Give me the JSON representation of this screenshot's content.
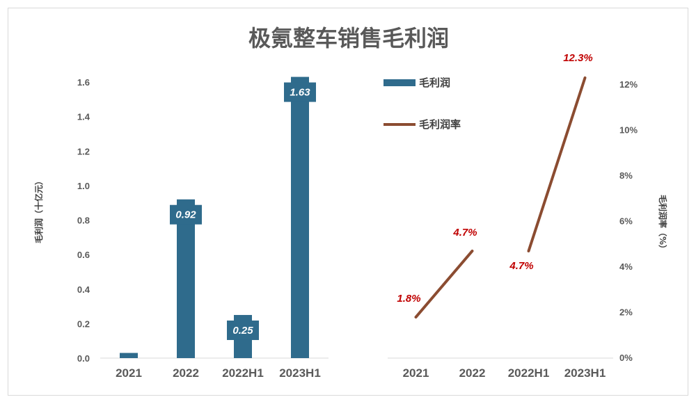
{
  "title": "极氪整车销售毛利润",
  "chart_data": [
    {
      "type": "bar",
      "categories": [
        "2021",
        "2022",
        "2022H1",
        "2023H1"
      ],
      "series": [
        {
          "name": "毛利润",
          "values": [
            0.03,
            0.92,
            0.25,
            1.63
          ]
        }
      ],
      "data_labels": [
        "",
        "0.92",
        "0.25",
        "1.63"
      ],
      "ylabel": "毛利润（十亿元）",
      "ylim": [
        0,
        1.6
      ],
      "yticks": [
        "0.0",
        "0.2",
        "0.4",
        "0.6",
        "0.8",
        "1.0",
        "1.2",
        "1.4",
        "1.6"
      ],
      "color": "#2f6b8c",
      "grid": false
    },
    {
      "type": "line",
      "categories": [
        "2021",
        "2022",
        "2022H1",
        "2023H1"
      ],
      "series": [
        {
          "name": "毛利润率",
          "values": [
            1.8,
            4.7,
            4.7,
            12.3
          ]
        }
      ],
      "segments": [
        [
          0,
          1
        ],
        [
          2,
          3
        ]
      ],
      "data_labels": [
        "1.8%",
        "4.7%",
        "4.7%",
        "12.3%"
      ],
      "ylabel": "毛利润率（%）",
      "ylim": [
        0,
        13
      ],
      "yticks": [
        "0%",
        "2%",
        "4%",
        "6%",
        "8%",
        "10%",
        "12%"
      ],
      "color": "#8b4c31",
      "label_color": "#c00000",
      "grid": false
    }
  ],
  "legend": {
    "placement": "top-right of bar panel",
    "items": [
      "毛利润",
      "毛利润率"
    ]
  }
}
